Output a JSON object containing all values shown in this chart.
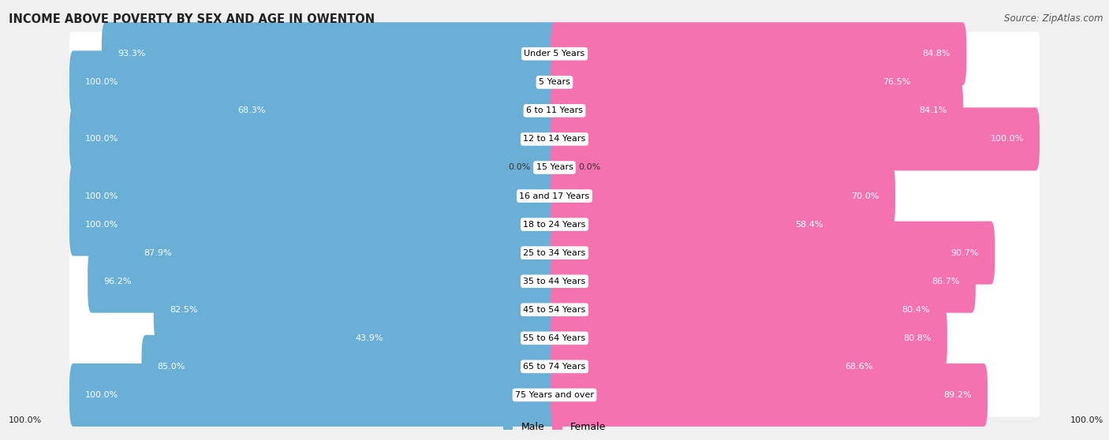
{
  "title": "INCOME ABOVE POVERTY BY SEX AND AGE IN OWENTON",
  "source": "Source: ZipAtlas.com",
  "categories": [
    "Under 5 Years",
    "5 Years",
    "6 to 11 Years",
    "12 to 14 Years",
    "15 Years",
    "16 and 17 Years",
    "18 to 24 Years",
    "25 to 34 Years",
    "35 to 44 Years",
    "45 to 54 Years",
    "55 to 64 Years",
    "65 to 74 Years",
    "75 Years and over"
  ],
  "male_values": [
    93.3,
    100.0,
    68.3,
    100.0,
    0.0,
    100.0,
    100.0,
    87.9,
    96.2,
    82.5,
    43.9,
    85.0,
    100.0
  ],
  "female_values": [
    84.8,
    76.5,
    84.1,
    100.0,
    0.0,
    70.0,
    58.4,
    90.7,
    86.7,
    80.4,
    80.8,
    68.6,
    89.2
  ],
  "male_color": "#6aafd6",
  "female_color": "#f472b0",
  "male_label": "Male",
  "female_label": "Female",
  "background_color": "#f0f0f0",
  "row_bg_color": "#ffffff",
  "title_fontsize": 10.5,
  "source_fontsize": 8.5,
  "label_fontsize": 8,
  "cat_fontsize": 8,
  "legend_fontsize": 9,
  "footer_label": "100.0%",
  "xlim": 100,
  "zero_stub": 4.5
}
